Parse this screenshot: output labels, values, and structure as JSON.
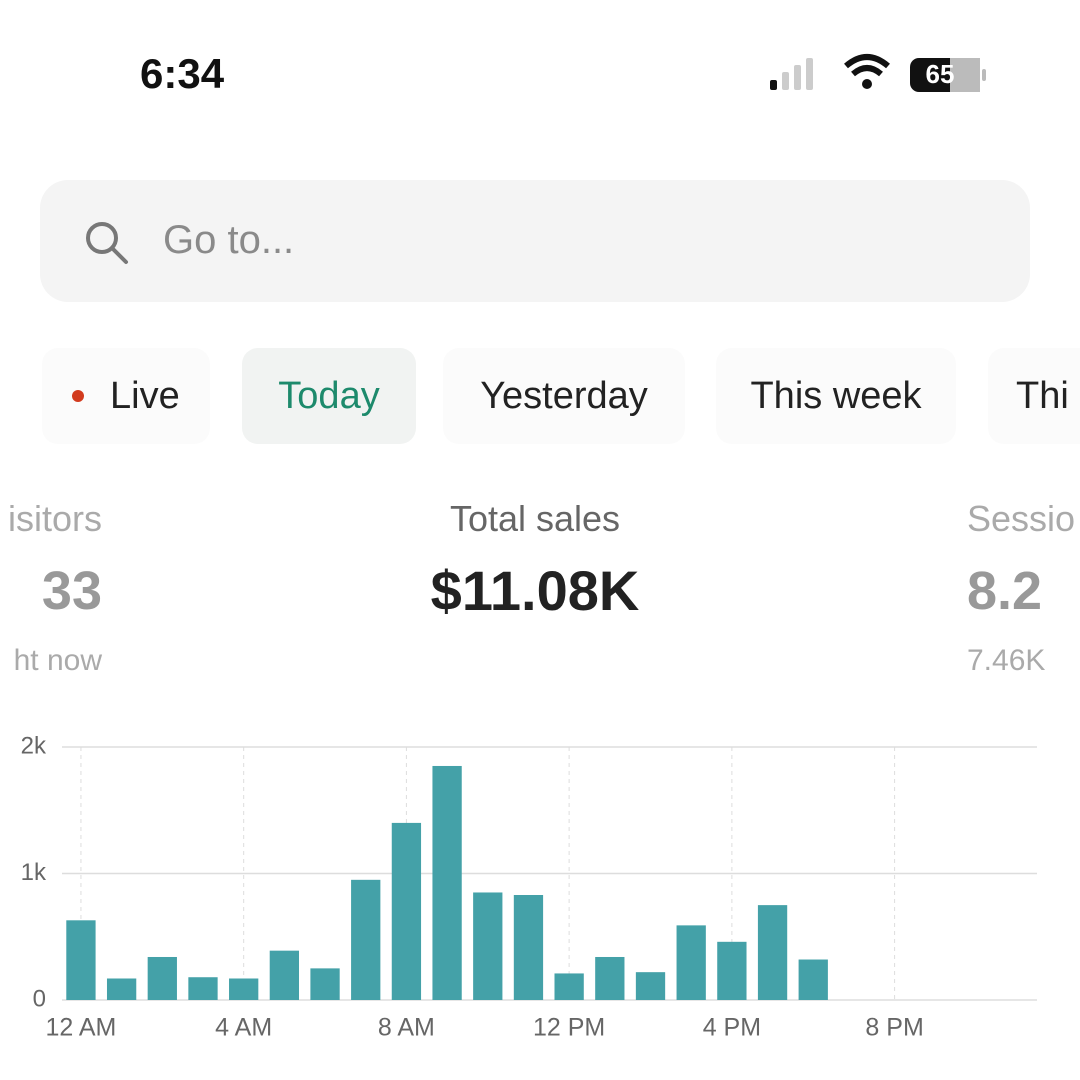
{
  "status_bar": {
    "time": "6:34",
    "battery": "65"
  },
  "search": {
    "placeholder": "Go to..."
  },
  "tabs": [
    "Live",
    "Today",
    "Yesterday",
    "This week",
    "Thi"
  ],
  "metrics": {
    "left": {
      "label": "isitors",
      "value": "33",
      "note": "ht now"
    },
    "center": {
      "label": "Total sales",
      "value": "$11.08K"
    },
    "right": {
      "label": "Sessio",
      "value": "8.2",
      "note": "7.46K"
    }
  },
  "chart_data": {
    "type": "bar",
    "categories": [
      "12 AM",
      null,
      null,
      null,
      "4 AM",
      null,
      null,
      null,
      "8 AM",
      null,
      null,
      null,
      "12 PM",
      null,
      null,
      null,
      "4 PM",
      null,
      null,
      null,
      "8 PM",
      null,
      null,
      null
    ],
    "values": [
      630,
      170,
      340,
      180,
      170,
      390,
      250,
      950,
      1400,
      1850,
      850,
      830,
      210,
      340,
      220,
      590,
      460,
      750,
      320,
      0,
      0,
      0,
      0,
      0
    ],
    "color": "#44a1a8",
    "ylim": [
      0,
      2000
    ],
    "yticks": [
      0,
      {
        "value": 1000,
        "label": "1k"
      },
      {
        "value": 2000,
        "label": "2k"
      }
    ],
    "grid": true
  }
}
